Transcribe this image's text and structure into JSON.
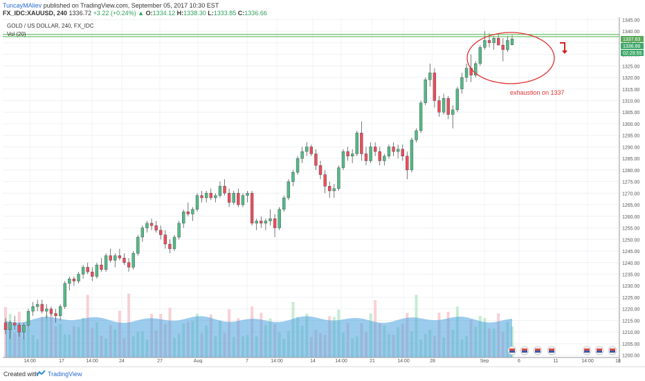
{
  "header": {
    "author": "TuncayMAliev",
    "published": "published on TradingView.com, September 05, 2017 10:30 EST",
    "symbol": "FX_IDC:XAUUSD, 240",
    "last": "1336.72",
    "change": "+3.22 (+0.24%)",
    "o_label": "O:",
    "o": "1334.12",
    "h_label": "H:",
    "h": "1338.30",
    "l_label": "L:",
    "l": "1333.85",
    "c_label": "C:",
    "c": "1336.66"
  },
  "legend": {
    "title": "GOLD / US DOLLAR, 240, FX_IDC",
    "vol": "Vol (20)"
  },
  "annotation": {
    "text": "exhaustion on 1337"
  },
  "price_badges": {
    "resistance": "1337.63",
    "last": "1336.66",
    "countdown": "02:29:55"
  },
  "footer": {
    "created": "Created with",
    "brand": "TradingView"
  },
  "colors": {
    "up": "#53b987",
    "down": "#eb4d5c",
    "hline": "#6cbf6c",
    "annotation": "#e03030",
    "volume_ma": "#4aa3df"
  },
  "chart_data": {
    "type": "candlestick",
    "title": "GOLD / US DOLLAR, 240, FX_IDC",
    "y_ticks": [
      1200,
      1205,
      1210,
      1215,
      1220,
      1225,
      1230,
      1235,
      1240,
      1245,
      1250,
      1255,
      1260,
      1265,
      1270,
      1275,
      1280,
      1285,
      1290,
      1295,
      1300,
      1305,
      1310,
      1315,
      1320,
      1325,
      1330,
      1335,
      1340,
      1345
    ],
    "ylim": [
      1199,
      1346
    ],
    "x_ticks": [
      "14:00",
      "17",
      "14:00",
      "24",
      "27",
      "Aug",
      "7",
      "14:00",
      "14",
      "14:00",
      "21",
      "14:00",
      "28",
      "Sep",
      "6",
      "11",
      "14:00",
      "18"
    ],
    "horizontal_lines": [
      1337.63,
      1338.6
    ],
    "events_icons": 7,
    "ohlc": [
      {
        "o": 1214,
        "h": 1216,
        "l": 1209,
        "c": 1211
      },
      {
        "o": 1211,
        "h": 1215,
        "l": 1207,
        "c": 1214
      },
      {
        "o": 1214,
        "h": 1217,
        "l": 1211,
        "c": 1213
      },
      {
        "o": 1213,
        "h": 1214,
        "l": 1208,
        "c": 1210
      },
      {
        "o": 1210,
        "h": 1214,
        "l": 1207,
        "c": 1213
      },
      {
        "o": 1213,
        "h": 1220,
        "l": 1212,
        "c": 1219
      },
      {
        "o": 1219,
        "h": 1223,
        "l": 1217,
        "c": 1221
      },
      {
        "o": 1221,
        "h": 1224,
        "l": 1219,
        "c": 1222
      },
      {
        "o": 1222,
        "h": 1224,
        "l": 1218,
        "c": 1219
      },
      {
        "o": 1219,
        "h": 1222,
        "l": 1216,
        "c": 1220
      },
      {
        "o": 1220,
        "h": 1221,
        "l": 1217,
        "c": 1218
      },
      {
        "o": 1218,
        "h": 1220,
        "l": 1214,
        "c": 1217
      },
      {
        "o": 1217,
        "h": 1222,
        "l": 1215,
        "c": 1221
      },
      {
        "o": 1221,
        "h": 1232,
        "l": 1220,
        "c": 1231
      },
      {
        "o": 1231,
        "h": 1234,
        "l": 1228,
        "c": 1233
      },
      {
        "o": 1233,
        "h": 1234,
        "l": 1230,
        "c": 1232
      },
      {
        "o": 1232,
        "h": 1236,
        "l": 1231,
        "c": 1235
      },
      {
        "o": 1235,
        "h": 1239,
        "l": 1233,
        "c": 1238
      },
      {
        "o": 1238,
        "h": 1240,
        "l": 1235,
        "c": 1236
      },
      {
        "o": 1236,
        "h": 1238,
        "l": 1232,
        "c": 1234
      },
      {
        "o": 1234,
        "h": 1240,
        "l": 1233,
        "c": 1239
      },
      {
        "o": 1239,
        "h": 1242,
        "l": 1236,
        "c": 1237
      },
      {
        "o": 1237,
        "h": 1244,
        "l": 1236,
        "c": 1243
      },
      {
        "o": 1243,
        "h": 1246,
        "l": 1240,
        "c": 1241
      },
      {
        "o": 1241,
        "h": 1244,
        "l": 1238,
        "c": 1243
      },
      {
        "o": 1243,
        "h": 1246,
        "l": 1241,
        "c": 1242
      },
      {
        "o": 1242,
        "h": 1244,
        "l": 1239,
        "c": 1240
      },
      {
        "o": 1240,
        "h": 1242,
        "l": 1236,
        "c": 1238
      },
      {
        "o": 1238,
        "h": 1245,
        "l": 1237,
        "c": 1244
      },
      {
        "o": 1244,
        "h": 1252,
        "l": 1243,
        "c": 1251
      },
      {
        "o": 1251,
        "h": 1256,
        "l": 1249,
        "c": 1255
      },
      {
        "o": 1255,
        "h": 1258,
        "l": 1253,
        "c": 1257
      },
      {
        "o": 1257,
        "h": 1259,
        "l": 1254,
        "c": 1256
      },
      {
        "o": 1256,
        "h": 1258,
        "l": 1253,
        "c": 1254
      },
      {
        "o": 1254,
        "h": 1256,
        "l": 1250,
        "c": 1252
      },
      {
        "o": 1252,
        "h": 1254,
        "l": 1246,
        "c": 1248
      },
      {
        "o": 1248,
        "h": 1250,
        "l": 1244,
        "c": 1246
      },
      {
        "o": 1246,
        "h": 1252,
        "l": 1245,
        "c": 1251
      },
      {
        "o": 1251,
        "h": 1258,
        "l": 1250,
        "c": 1257
      },
      {
        "o": 1257,
        "h": 1263,
        "l": 1255,
        "c": 1262
      },
      {
        "o": 1262,
        "h": 1266,
        "l": 1260,
        "c": 1261
      },
      {
        "o": 1261,
        "h": 1264,
        "l": 1258,
        "c": 1263
      },
      {
        "o": 1263,
        "h": 1270,
        "l": 1262,
        "c": 1269
      },
      {
        "o": 1269,
        "h": 1271,
        "l": 1266,
        "c": 1268
      },
      {
        "o": 1268,
        "h": 1271,
        "l": 1266,
        "c": 1270
      },
      {
        "o": 1270,
        "h": 1272,
        "l": 1267,
        "c": 1268
      },
      {
        "o": 1268,
        "h": 1270,
        "l": 1266,
        "c": 1269
      },
      {
        "o": 1269,
        "h": 1275,
        "l": 1268,
        "c": 1273
      },
      {
        "o": 1273,
        "h": 1276,
        "l": 1269,
        "c": 1270
      },
      {
        "o": 1270,
        "h": 1272,
        "l": 1264,
        "c": 1266
      },
      {
        "o": 1266,
        "h": 1271,
        "l": 1265,
        "c": 1270
      },
      {
        "o": 1270,
        "h": 1272,
        "l": 1264,
        "c": 1265
      },
      {
        "o": 1265,
        "h": 1270,
        "l": 1264,
        "c": 1269
      },
      {
        "o": 1269,
        "h": 1271,
        "l": 1266,
        "c": 1270
      },
      {
        "o": 1270,
        "h": 1271,
        "l": 1256,
        "c": 1257
      },
      {
        "o": 1257,
        "h": 1259,
        "l": 1254,
        "c": 1258
      },
      {
        "o": 1258,
        "h": 1260,
        "l": 1255,
        "c": 1257
      },
      {
        "o": 1257,
        "h": 1259,
        "l": 1254,
        "c": 1258
      },
      {
        "o": 1258,
        "h": 1263,
        "l": 1256,
        "c": 1259
      },
      {
        "o": 1259,
        "h": 1261,
        "l": 1251,
        "c": 1255
      },
      {
        "o": 1255,
        "h": 1264,
        "l": 1254,
        "c": 1263
      },
      {
        "o": 1263,
        "h": 1269,
        "l": 1262,
        "c": 1268
      },
      {
        "o": 1268,
        "h": 1276,
        "l": 1267,
        "c": 1275
      },
      {
        "o": 1275,
        "h": 1280,
        "l": 1273,
        "c": 1279
      },
      {
        "o": 1279,
        "h": 1286,
        "l": 1278,
        "c": 1285
      },
      {
        "o": 1285,
        "h": 1290,
        "l": 1283,
        "c": 1288
      },
      {
        "o": 1288,
        "h": 1292,
        "l": 1286,
        "c": 1290
      },
      {
        "o": 1290,
        "h": 1291,
        "l": 1286,
        "c": 1287
      },
      {
        "o": 1287,
        "h": 1289,
        "l": 1280,
        "c": 1282
      },
      {
        "o": 1282,
        "h": 1284,
        "l": 1276,
        "c": 1278
      },
      {
        "o": 1278,
        "h": 1280,
        "l": 1270,
        "c": 1273
      },
      {
        "o": 1273,
        "h": 1275,
        "l": 1268,
        "c": 1271
      },
      {
        "o": 1271,
        "h": 1274,
        "l": 1268,
        "c": 1272
      },
      {
        "o": 1272,
        "h": 1282,
        "l": 1271,
        "c": 1281
      },
      {
        "o": 1281,
        "h": 1289,
        "l": 1280,
        "c": 1288
      },
      {
        "o": 1288,
        "h": 1290,
        "l": 1284,
        "c": 1286
      },
      {
        "o": 1286,
        "h": 1289,
        "l": 1283,
        "c": 1287
      },
      {
        "o": 1287,
        "h": 1297,
        "l": 1286,
        "c": 1296
      },
      {
        "o": 1296,
        "h": 1301,
        "l": 1284,
        "c": 1287
      },
      {
        "o": 1287,
        "h": 1290,
        "l": 1282,
        "c": 1284
      },
      {
        "o": 1284,
        "h": 1292,
        "l": 1283,
        "c": 1290
      },
      {
        "o": 1290,
        "h": 1292,
        "l": 1286,
        "c": 1288
      },
      {
        "o": 1288,
        "h": 1290,
        "l": 1282,
        "c": 1284
      },
      {
        "o": 1284,
        "h": 1287,
        "l": 1282,
        "c": 1286
      },
      {
        "o": 1286,
        "h": 1291,
        "l": 1285,
        "c": 1290
      },
      {
        "o": 1290,
        "h": 1292,
        "l": 1286,
        "c": 1288
      },
      {
        "o": 1288,
        "h": 1291,
        "l": 1285,
        "c": 1289
      },
      {
        "o": 1289,
        "h": 1291,
        "l": 1284,
        "c": 1286
      },
      {
        "o": 1286,
        "h": 1288,
        "l": 1276,
        "c": 1280
      },
      {
        "o": 1280,
        "h": 1294,
        "l": 1279,
        "c": 1293
      },
      {
        "o": 1293,
        "h": 1298,
        "l": 1292,
        "c": 1297
      },
      {
        "o": 1297,
        "h": 1310,
        "l": 1296,
        "c": 1309
      },
      {
        "o": 1309,
        "h": 1320,
        "l": 1308,
        "c": 1319
      },
      {
        "o": 1319,
        "h": 1326,
        "l": 1316,
        "c": 1322
      },
      {
        "o": 1322,
        "h": 1324,
        "l": 1307,
        "c": 1310
      },
      {
        "o": 1310,
        "h": 1312,
        "l": 1303,
        "c": 1305
      },
      {
        "o": 1305,
        "h": 1313,
        "l": 1304,
        "c": 1311
      },
      {
        "o": 1311,
        "h": 1312,
        "l": 1302,
        "c": 1304
      },
      {
        "o": 1304,
        "h": 1308,
        "l": 1298,
        "c": 1306
      },
      {
        "o": 1306,
        "h": 1316,
        "l": 1305,
        "c": 1315
      },
      {
        "o": 1315,
        "h": 1322,
        "l": 1313,
        "c": 1320
      },
      {
        "o": 1320,
        "h": 1326,
        "l": 1318,
        "c": 1324
      },
      {
        "o": 1324,
        "h": 1330,
        "l": 1318,
        "c": 1321
      },
      {
        "o": 1321,
        "h": 1327,
        "l": 1320,
        "c": 1326
      },
      {
        "o": 1326,
        "h": 1334,
        "l": 1325,
        "c": 1333
      },
      {
        "o": 1333,
        "h": 1340,
        "l": 1332,
        "c": 1336
      },
      {
        "o": 1336,
        "h": 1339,
        "l": 1333,
        "c": 1335
      },
      {
        "o": 1335,
        "h": 1338,
        "l": 1332,
        "c": 1337
      },
      {
        "o": 1337,
        "h": 1339,
        "l": 1334,
        "c": 1334
      },
      {
        "o": 1334,
        "h": 1337,
        "l": 1327,
        "c": 1332
      },
      {
        "o": 1332,
        "h": 1338,
        "l": 1331,
        "c": 1336
      },
      {
        "o": 1334.12,
        "h": 1338.3,
        "l": 1333.85,
        "c": 1336.66
      }
    ]
  }
}
